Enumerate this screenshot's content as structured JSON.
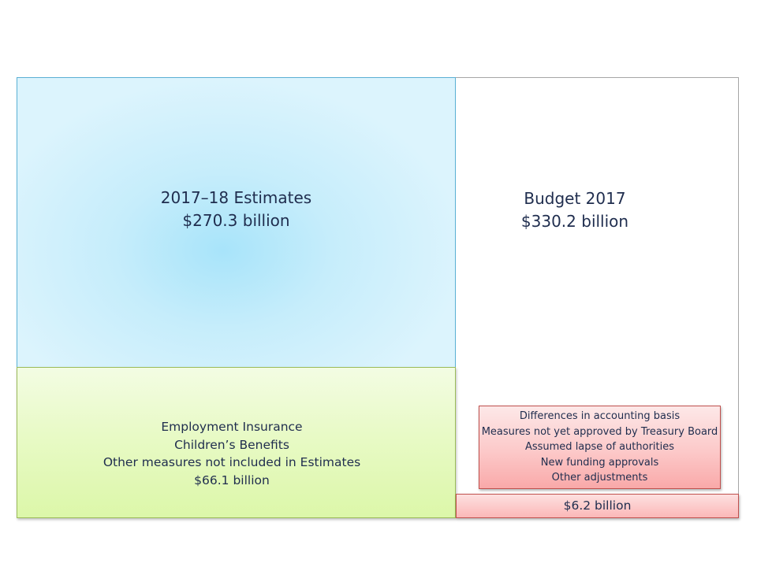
{
  "budget": {
    "title": "Budget 2017",
    "amount": "$330.2 billion"
  },
  "estimates": {
    "title": "2017–18 Estimates",
    "amount": "$270.3 billion"
  },
  "other_measures": {
    "line1": "Employment Insurance",
    "line2": "Children’s Benefits",
    "line3": "Other measures not included in Estimates",
    "amount": "$66.1 billion"
  },
  "adjustments": {
    "line1": "Differences in accounting basis",
    "line2": "Measures not yet approved by Treasury Board",
    "line3": "Assumed lapse of authorities",
    "line4": "New funding approvals",
    "line5": "Other adjustments"
  },
  "strip": {
    "amount": "$6.2 billion"
  },
  "colors": {
    "estimates_fill": "#c6edfb",
    "other_measures_fill": "#e8fac6",
    "adjustments_fill": "#fcc9c9",
    "text": "#1f2d4e"
  }
}
